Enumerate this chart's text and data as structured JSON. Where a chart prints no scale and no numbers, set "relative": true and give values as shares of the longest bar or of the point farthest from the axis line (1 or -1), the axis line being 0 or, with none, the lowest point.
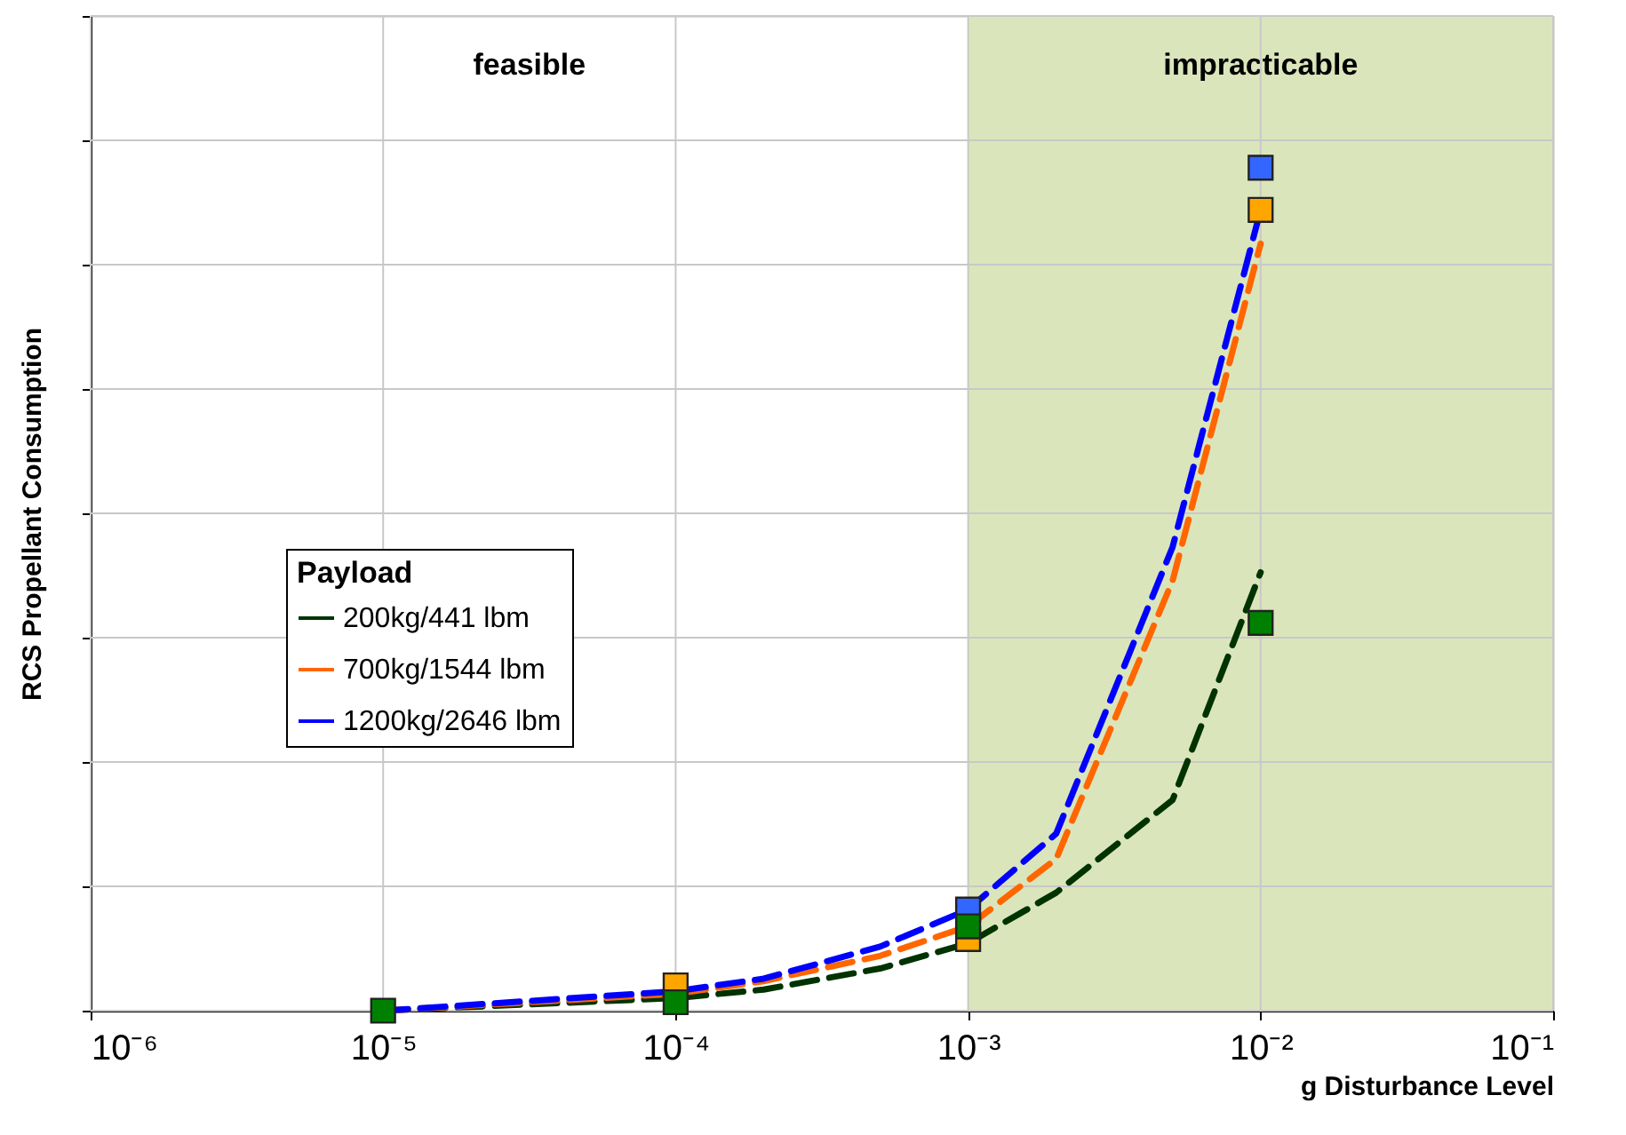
{
  "chart_data": {
    "type": "line",
    "xlabel": "g Disturbance Level",
    "ylabel": "RCS Propellant Consumption",
    "legend_title": "Payload",
    "relative": true,
    "log": "x",
    "grid": true,
    "legend": "left",
    "tick_labels": "x",
    "xlim": [
      1e-06,
      0.1
    ],
    "xticks": [
      {
        "value": 1e-06,
        "label": "10⁻⁶"
      },
      {
        "value": 1e-05,
        "label": "10⁻⁵"
      },
      {
        "value": 0.0001,
        "label": "10⁻⁴"
      },
      {
        "value": 0.001,
        "label": "10⁻³"
      },
      {
        "value": 0.01,
        "label": "10⁻²"
      },
      {
        "value": 0.1,
        "label": "10⁻¹"
      }
    ],
    "annotations": [
      "feasible"
    ],
    "bands": [
      {
        "axis": "x",
        "from": 0.001,
        "to": 0.1,
        "label": "impracticable",
        "color": "#dbe5bb"
      }
    ],
    "series": [
      {
        "name": "200kg/441 lbm",
        "line_style": "dashed",
        "color": "#003300",
        "x": [
          1e-05,
          0.0001,
          0.0002,
          0.0005,
          0.001,
          0.002,
          0.005,
          0.01
        ],
        "values": [
          0,
          0.015,
          0.025,
          0.05,
          0.08,
          0.14,
          0.25,
          0.52
        ]
      },
      {
        "name": "700kg/1544 lbm",
        "line_style": "dashed",
        "color": "#ff6600",
        "x": [
          1e-05,
          0.0001,
          0.0002,
          0.0005,
          0.001,
          0.002,
          0.005,
          0.01
        ],
        "values": [
          0,
          0.02,
          0.035,
          0.065,
          0.1,
          0.18,
          0.51,
          0.91
        ]
      },
      {
        "name": "1200kg/2646 lbm",
        "line_style": "dashed",
        "color": "#0000ff",
        "x": [
          1e-05,
          0.0001,
          0.0002,
          0.0005,
          0.001,
          0.002,
          0.005,
          0.01
        ],
        "values": [
          0,
          0.023,
          0.038,
          0.076,
          0.12,
          0.21,
          0.55,
          0.95
        ]
      },
      {
        "type": "scatter",
        "marker": "square",
        "color": "#3366ff",
        "x": [
          0.001,
          0.01
        ],
        "values": [
          0.12,
          1.0
        ]
      },
      {
        "type": "scatter",
        "marker": "square",
        "color": "#ffa500",
        "x": [
          0.0001,
          0.001,
          0.01
        ],
        "values": [
          0.03,
          0.085,
          0.95
        ]
      },
      {
        "type": "scatter",
        "marker": "square",
        "color": "#008000",
        "x": [
          1e-05,
          0.0001,
          0.001,
          0.01
        ],
        "values": [
          0,
          0.01,
          0.1,
          0.46
        ]
      }
    ]
  }
}
